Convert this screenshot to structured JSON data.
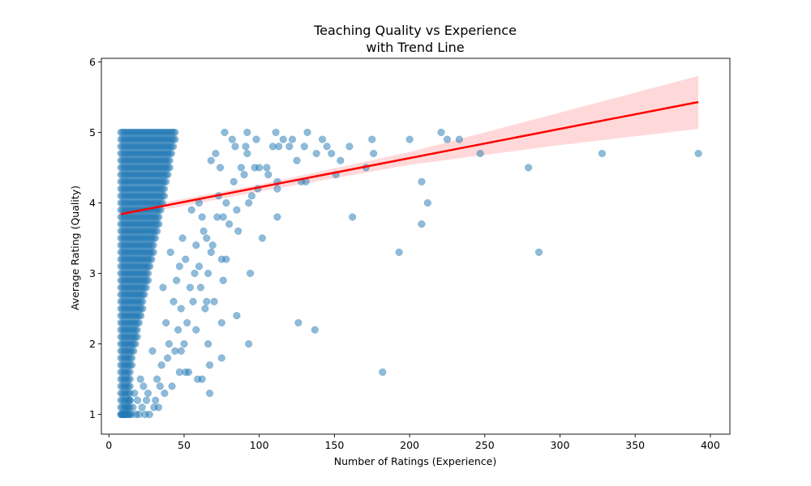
{
  "chart_data": {
    "type": "scatter",
    "title": [
      "Teaching Quality vs Experience",
      "with Trend Line"
    ],
    "xlabel": "Number of Ratings (Experience)",
    "ylabel": "Average Rating (Quality)",
    "xlim": [
      -5,
      413
    ],
    "ylim": [
      0.72,
      6.05
    ],
    "xticks": [
      0,
      50,
      100,
      150,
      200,
      250,
      300,
      350,
      400
    ],
    "yticks": [
      1,
      2,
      3,
      4,
      5,
      6
    ],
    "grid": false,
    "legend": "none",
    "colors": {
      "points": "#1f77b4",
      "trend": "#ff0000",
      "band": "#ff0000"
    },
    "trend_line": {
      "x": [
        8,
        392
      ],
      "y": [
        3.84,
        5.43
      ]
    },
    "confidence_band": {
      "x": [
        8,
        100,
        200,
        300,
        392
      ],
      "lower": [
        3.79,
        4.16,
        4.54,
        4.82,
        5.05
      ],
      "upper": [
        3.89,
        4.26,
        4.72,
        5.28,
        5.8
      ]
    },
    "dense_band": {
      "x_min": 8,
      "x_max": 45,
      "y_step": 0.1,
      "y_min": 1.0,
      "y_max": 5.0
    },
    "points": [
      [
        392,
        4.7
      ],
      [
        328,
        4.7
      ],
      [
        286,
        3.3
      ],
      [
        279,
        4.5
      ],
      [
        247,
        4.7
      ],
      [
        233,
        4.9
      ],
      [
        225,
        4.9
      ],
      [
        221,
        5.0
      ],
      [
        212,
        4.0
      ],
      [
        208,
        3.7
      ],
      [
        208,
        4.3
      ],
      [
        200,
        4.9
      ],
      [
        193,
        3.3
      ],
      [
        182,
        1.6
      ],
      [
        176,
        4.7
      ],
      [
        175,
        4.9
      ],
      [
        171,
        4.5
      ],
      [
        162,
        3.8
      ],
      [
        160,
        4.8
      ],
      [
        154,
        4.6
      ],
      [
        151,
        4.4
      ],
      [
        148,
        4.7
      ],
      [
        145,
        4.8
      ],
      [
        142,
        4.9
      ],
      [
        138,
        4.7
      ],
      [
        137,
        2.2
      ],
      [
        132,
        5.0
      ],
      [
        131,
        4.3
      ],
      [
        130,
        4.8
      ],
      [
        128,
        4.3
      ],
      [
        126,
        2.3
      ],
      [
        125,
        4.6
      ],
      [
        122,
        4.9
      ],
      [
        120,
        4.8
      ],
      [
        116,
        4.9
      ],
      [
        113,
        4.8
      ],
      [
        112,
        4.2
      ],
      [
        112,
        3.8
      ],
      [
        112,
        4.3
      ],
      [
        111,
        5.0
      ],
      [
        109,
        4.8
      ],
      [
        106,
        4.4
      ],
      [
        105,
        4.5
      ],
      [
        102,
        3.5
      ],
      [
        100,
        4.5
      ],
      [
        99,
        4.2
      ],
      [
        98,
        4.9
      ],
      [
        97,
        4.5
      ],
      [
        95,
        4.1
      ],
      [
        94,
        3.0
      ],
      [
        93,
        2.0
      ],
      [
        93,
        4.0
      ],
      [
        92,
        5.0
      ],
      [
        92,
        4.7
      ],
      [
        91,
        4.8
      ],
      [
        90,
        4.4
      ],
      [
        88,
        4.5
      ],
      [
        86,
        3.6
      ],
      [
        85,
        2.4
      ],
      [
        85,
        3.9
      ],
      [
        84,
        4.8
      ],
      [
        83,
        4.3
      ],
      [
        82,
        4.9
      ],
      [
        80,
        3.7
      ],
      [
        78,
        3.2
      ],
      [
        78,
        4.0
      ],
      [
        77,
        5.0
      ],
      [
        76,
        2.9
      ],
      [
        76,
        3.8
      ],
      [
        75,
        1.8
      ],
      [
        75,
        2.3
      ],
      [
        75,
        3.2
      ],
      [
        74,
        4.5
      ],
      [
        73,
        4.1
      ],
      [
        72,
        3.8
      ],
      [
        71,
        4.7
      ],
      [
        70,
        2.6
      ],
      [
        69,
        3.4
      ],
      [
        68,
        3.3
      ],
      [
        68,
        4.6
      ],
      [
        67,
        1.3
      ],
      [
        67,
        1.7
      ],
      [
        66,
        2.0
      ],
      [
        66,
        3.0
      ],
      [
        65,
        3.5
      ],
      [
        65,
        2.6
      ],
      [
        64,
        2.5
      ],
      [
        63,
        3.6
      ],
      [
        62,
        1.5
      ],
      [
        62,
        3.8
      ],
      [
        61,
        2.8
      ],
      [
        60,
        3.1
      ],
      [
        60,
        4.0
      ],
      [
        59,
        1.5
      ],
      [
        58,
        2.2
      ],
      [
        58,
        3.4
      ],
      [
        57,
        3.0
      ],
      [
        56,
        2.6
      ],
      [
        55,
        3.9
      ],
      [
        54,
        2.8
      ],
      [
        53,
        1.6
      ],
      [
        52,
        2.3
      ],
      [
        51,
        1.6
      ],
      [
        51,
        3.2
      ],
      [
        50,
        2.0
      ],
      [
        49,
        3.5
      ],
      [
        48,
        2.5
      ],
      [
        48,
        1.9
      ],
      [
        47,
        1.6
      ],
      [
        47,
        3.1
      ],
      [
        46,
        2.2
      ],
      [
        45,
        2.9
      ],
      [
        44,
        1.9
      ],
      [
        43,
        2.6
      ],
      [
        42,
        1.4
      ],
      [
        41,
        3.3
      ],
      [
        40,
        2.0
      ],
      [
        39,
        1.8
      ],
      [
        38,
        2.3
      ],
      [
        37,
        1.3
      ],
      [
        36,
        2.8
      ],
      [
        35,
        1.7
      ],
      [
        34,
        1.4
      ],
      [
        33,
        1.1
      ],
      [
        32,
        1.5
      ],
      [
        31,
        1.2
      ],
      [
        30,
        1.1
      ],
      [
        29,
        1.9
      ],
      [
        27,
        1.0
      ],
      [
        26,
        1.3
      ],
      [
        25,
        1.2
      ],
      [
        24,
        1.0
      ],
      [
        23,
        1.4
      ],
      [
        22,
        1.1
      ],
      [
        21,
        1.5
      ],
      [
        20,
        1.0
      ],
      [
        19,
        1.2
      ],
      [
        18,
        1.0
      ],
      [
        17,
        1.3
      ],
      [
        16,
        1.1
      ],
      [
        15,
        1.0
      ],
      [
        14,
        1.2
      ],
      [
        13,
        1.0
      ],
      [
        12,
        1.1
      ],
      [
        11,
        1.0
      ],
      [
        10,
        1.0
      ],
      [
        9,
        1.0
      ],
      [
        8,
        1.0
      ]
    ]
  }
}
